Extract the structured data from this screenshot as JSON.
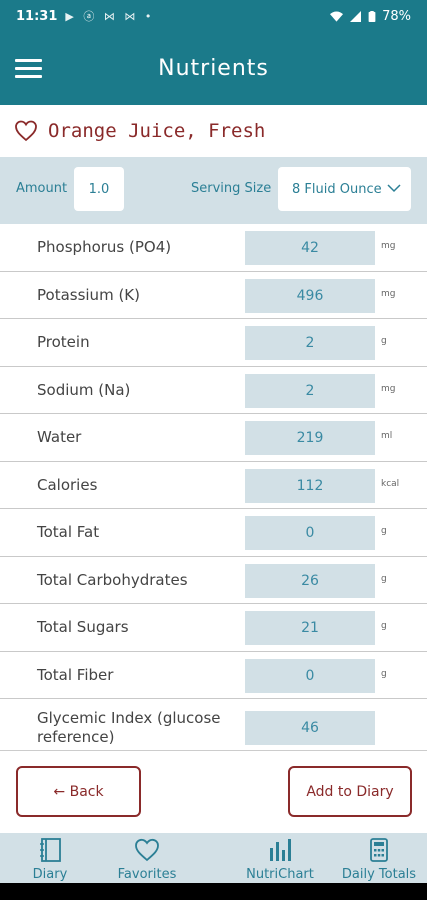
{
  "status_bar": {
    "time": "11:31",
    "notification_icons": "▶ ⓐ ⋈ ⋈ •",
    "battery": "78%"
  },
  "app_bar": {
    "title": "Nutrients"
  },
  "food": {
    "name": "Orange Juice, Fresh"
  },
  "amount": {
    "label": "Amount",
    "value": "1.0"
  },
  "serving": {
    "label": "Serving Size",
    "value": "8 Fluid Ounce"
  },
  "nutrients": [
    {
      "name": "Phosphorus (PO4)",
      "value": "42",
      "unit": "mg"
    },
    {
      "name": "Potassium (K)",
      "value": "496",
      "unit": "mg"
    },
    {
      "name": "Protein",
      "value": "2",
      "unit": "g"
    },
    {
      "name": "Sodium (Na)",
      "value": "2",
      "unit": "mg"
    },
    {
      "name": "Water",
      "value": "219",
      "unit": "ml"
    },
    {
      "name": "Calories",
      "value": "112",
      "unit": "kcal"
    },
    {
      "name": "Total Fat",
      "value": "0",
      "unit": "g"
    },
    {
      "name": "Total Carbohydrates",
      "value": "26",
      "unit": "g"
    },
    {
      "name": "Total Sugars",
      "value": "21",
      "unit": "g"
    },
    {
      "name": "Total Fiber",
      "value": "0",
      "unit": "g"
    },
    {
      "name": "Glycemic Index (glucose reference)",
      "value": "46",
      "unit": ""
    }
  ],
  "actions": {
    "back_label": "← Back",
    "add_label": "Add to Diary"
  },
  "bottom_nav": [
    {
      "label": "Diary",
      "icon": "diary-icon"
    },
    {
      "label": "Favorites",
      "icon": "heart-icon"
    },
    {
      "label": "NutriChart",
      "icon": "bar-chart-icon"
    },
    {
      "label": "Daily Totals",
      "icon": "calculator-icon"
    }
  ],
  "colors": {
    "teal": "#1b7a8a",
    "panel": "#d2e0e6",
    "accent_red": "#8a2a2a",
    "link_blue": "#2b7f95"
  }
}
